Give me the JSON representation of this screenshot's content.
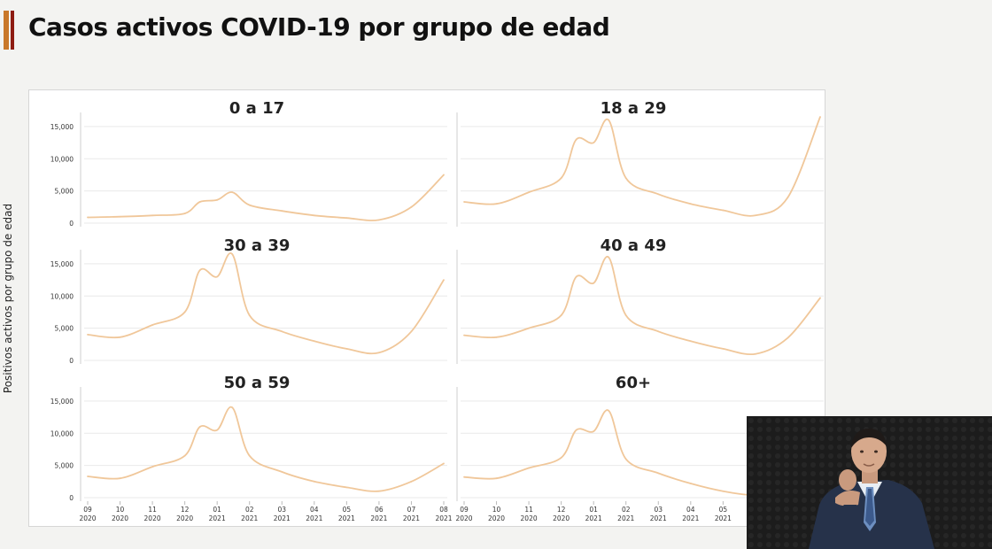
{
  "page": {
    "title": "Casos activos COVID-19 por grupo de edad",
    "accent_colors": [
      "#c9782a",
      "#8e1c12"
    ]
  },
  "chart_data": {
    "type": "line",
    "ylabel": "Positivos activos por grupo de edad",
    "ylim": [
      0,
      16500
    ],
    "yticks": [
      0,
      5000,
      10000,
      15000
    ],
    "ytick_labels": [
      "0",
      "5,000",
      "10,000",
      "15,000"
    ],
    "xticks": [
      {
        "month": "09",
        "year": "2020"
      },
      {
        "month": "10",
        "year": "2020"
      },
      {
        "month": "11",
        "year": "2020"
      },
      {
        "month": "12",
        "year": "2020"
      },
      {
        "month": "01",
        "year": "2021"
      },
      {
        "month": "02",
        "year": "2021"
      },
      {
        "month": "03",
        "year": "2021"
      },
      {
        "month": "04",
        "year": "2021"
      },
      {
        "month": "05",
        "year": "2021"
      },
      {
        "month": "06",
        "year": "2021"
      },
      {
        "month": "07",
        "year": "2021"
      },
      {
        "month": "08",
        "year": "2021"
      }
    ],
    "grid": true,
    "line_color": "#f0c79a",
    "x": [
      "2020-09",
      "2020-10",
      "2020-11",
      "2020-12",
      "2020-12-15",
      "2021-01",
      "2021-01-15",
      "2021-02",
      "2021-03",
      "2021-04",
      "2021-05",
      "2021-06",
      "2021-07",
      "2021-08"
    ],
    "panels": [
      {
        "title": "0 a 17",
        "values": [
          900,
          1000,
          1200,
          1500,
          3300,
          3600,
          4800,
          2800,
          1900,
          1200,
          800,
          500,
          2500,
          7500
        ]
      },
      {
        "title": "18 a 29",
        "values": [
          3300,
          3000,
          4800,
          7000,
          13000,
          12500,
          16000,
          7000,
          4500,
          3000,
          2000,
          1200,
          4000,
          16500
        ]
      },
      {
        "title": "30 a 39",
        "values": [
          4000,
          3600,
          5500,
          7500,
          14000,
          13000,
          16500,
          7000,
          4500,
          3000,
          1800,
          1200,
          4500,
          12500
        ]
      },
      {
        "title": "40 a 49",
        "values": [
          3900,
          3600,
          5000,
          7000,
          13000,
          12000,
          16000,
          7000,
          4500,
          3000,
          1800,
          1000,
          3500,
          9700
        ]
      },
      {
        "title": "50 a 59",
        "values": [
          3300,
          3000,
          4800,
          6500,
          11000,
          10500,
          14000,
          6500,
          4000,
          2500,
          1600,
          1000,
          2500,
          5300
        ]
      },
      {
        "title": "60+",
        "values": [
          3200,
          3000,
          4600,
          6200,
          10500,
          10300,
          13500,
          6000,
          3800,
          2200,
          1000,
          400,
          1000,
          1500
        ]
      }
    ]
  }
}
